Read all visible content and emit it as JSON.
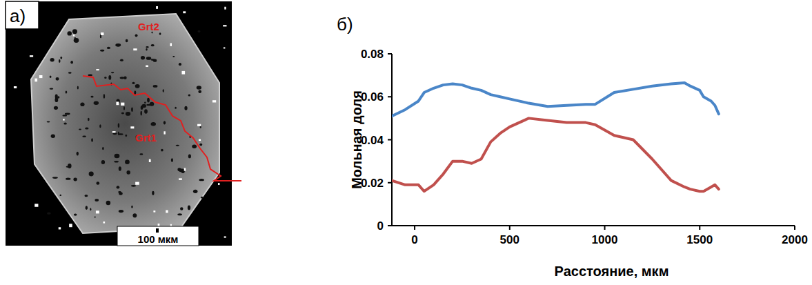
{
  "image_panel": {
    "letter": "а)",
    "labels": [
      "Grt2",
      "Grt1"
    ],
    "scale_bar": "100 мкм"
  },
  "chart_data": {
    "type": "line",
    "title": "б)",
    "x_label": "Расстояние, мкм",
    "y_label": "Мольная доля",
    "x": [
      -120,
      -50,
      20,
      50,
      100,
      150,
      200,
      250,
      300,
      350,
      400,
      450,
      500,
      600,
      700,
      800,
      900,
      950,
      1050,
      1150,
      1250,
      1350,
      1420,
      1450,
      1500,
      1520,
      1560,
      1580,
      1600
    ],
    "series": [
      {
        "color": "#4a86c8",
        "values": [
          0.051,
          0.054,
          0.058,
          0.062,
          0.064,
          0.0655,
          0.066,
          0.0655,
          0.064,
          0.063,
          0.061,
          0.06,
          0.059,
          0.057,
          0.0555,
          0.056,
          0.0565,
          0.0565,
          0.062,
          0.0635,
          0.065,
          0.066,
          0.0665,
          0.065,
          0.063,
          0.06,
          0.058,
          0.056,
          0.052
        ]
      },
      {
        "color": "#c0504d",
        "values": [
          0.021,
          0.019,
          0.019,
          0.016,
          0.019,
          0.024,
          0.03,
          0.03,
          0.029,
          0.031,
          0.039,
          0.043,
          0.046,
          0.05,
          0.049,
          0.048,
          0.048,
          0.047,
          0.042,
          0.04,
          0.031,
          0.021,
          0.018,
          0.017,
          0.016,
          0.016,
          0.018,
          0.019,
          0.017
        ]
      }
    ],
    "xlim": [
      -120,
      2000
    ],
    "xticks": [
      0,
      500,
      1000,
      1500,
      2000
    ],
    "ylim": [
      0,
      0.08
    ],
    "yticks": [
      0,
      0.02,
      0.04,
      0.06,
      0.08
    ],
    "grid": false
  }
}
